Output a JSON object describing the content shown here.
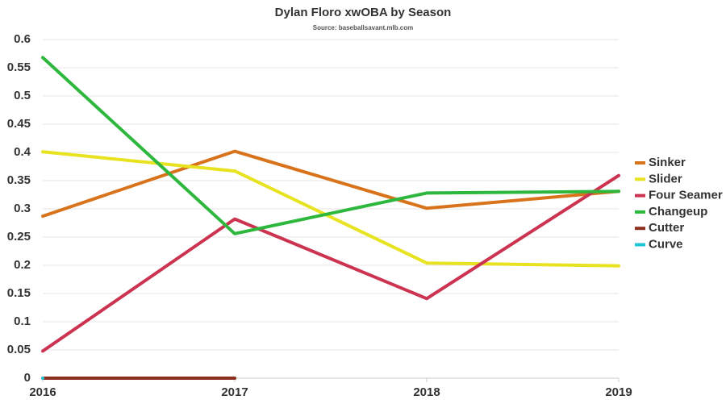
{
  "chart_data": {
    "type": "line",
    "title": "Dylan Floro xwOBA by Season",
    "subtitle": "Source: baseballsavant.mlb.com",
    "x": [
      2016,
      2017,
      2018,
      2019
    ],
    "xlim": [
      2016,
      2019
    ],
    "xticks": [
      2016,
      2017,
      2018,
      2019
    ],
    "ylim": [
      0,
      0.6
    ],
    "yticks": [
      0,
      0.05,
      0.1,
      0.15,
      0.2,
      0.25,
      0.3,
      0.35,
      0.4,
      0.45,
      0.5,
      0.55,
      0.6
    ],
    "grid": true,
    "legend": "right",
    "series": [
      {
        "name": "Sinker",
        "color": "#d9731b",
        "values": [
          0.287,
          0.402,
          0.301,
          0.331
        ]
      },
      {
        "name": "Slider",
        "color": "#e8e320",
        "values": [
          0.401,
          0.367,
          0.204,
          0.199
        ]
      },
      {
        "name": "Four Seamer",
        "color": "#cc3350",
        "values": [
          0.048,
          0.282,
          0.141,
          0.359
        ]
      },
      {
        "name": "Changeup",
        "color": "#2db83d",
        "values": [
          0.568,
          0.256,
          0.328,
          0.331
        ]
      },
      {
        "name": "Cutter",
        "color": "#8b2e1e",
        "values": [
          0,
          0,
          null,
          null
        ]
      },
      {
        "name": "Curve",
        "color": "#1fc4d6",
        "values": [
          0,
          null,
          null,
          null
        ]
      }
    ]
  }
}
